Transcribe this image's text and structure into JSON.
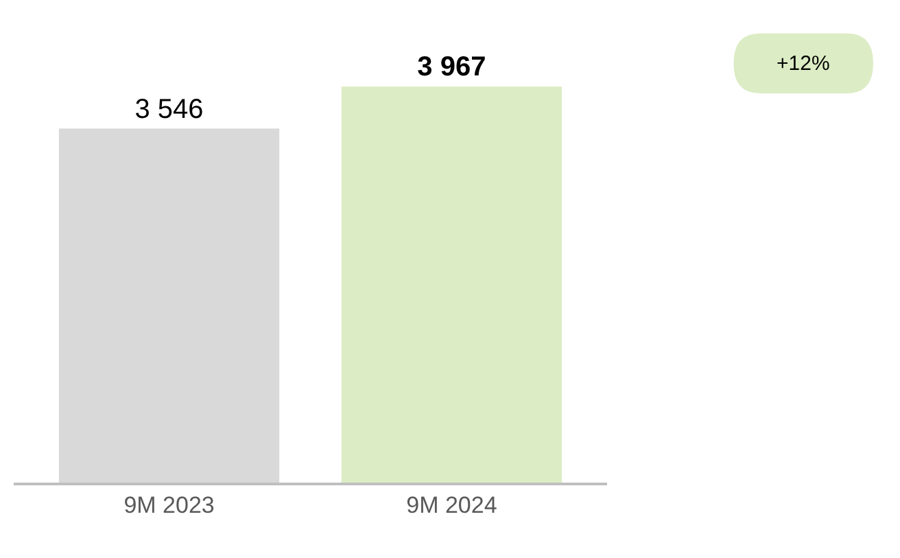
{
  "chart_data": {
    "type": "bar",
    "categories": [
      "9M 2023",
      "9M 2024"
    ],
    "values": [
      3546,
      3967
    ],
    "colors": [
      "#d9d9d9",
      "#dcecc4"
    ],
    "data_labels": true,
    "annotations": [
      "+12%"
    ]
  }
}
